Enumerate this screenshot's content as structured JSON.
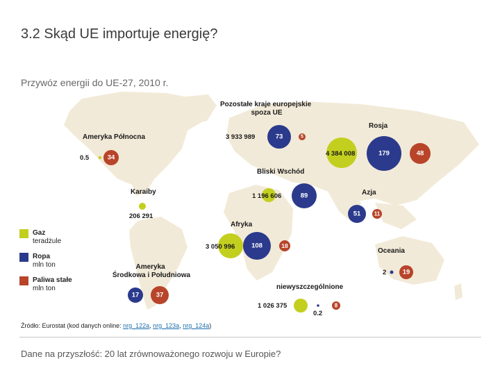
{
  "header": {
    "title": "3.2 Skąd UE importuje energię?",
    "subtitle": "Przywóz energii do UE-27, 2010 r."
  },
  "colors": {
    "gas": "#c3cf1f",
    "oil": "#2b3a8c",
    "solid": "#b8442a",
    "land": "#f2ead8",
    "sea": "#ffffff"
  },
  "legend": {
    "gas": {
      "label": "Gaz",
      "unit": "teradżule"
    },
    "oil": {
      "label": "Ropa",
      "unit": "mln ton"
    },
    "solid": {
      "label": "Paliwa stałe",
      "unit": "mln ton"
    }
  },
  "regions": {
    "north_america": {
      "label": "Ameryka Północna",
      "gas": "0.5",
      "solid": "34"
    },
    "other_europe": {
      "label": "Pozostałe kraje europejskie spoza UE",
      "gas": "3 933 989",
      "oil": "73",
      "solid": "5"
    },
    "russia": {
      "label": "Rosja",
      "gas": "4 384 008",
      "oil": "179",
      "solid": "48"
    },
    "middle_east": {
      "label": "Bliski Wschód",
      "gas": "1 196 606",
      "oil": "89"
    },
    "caribbean": {
      "label": "Karaiby",
      "gas": "206 291"
    },
    "asia": {
      "label": "Azja",
      "oil": "51",
      "solid": "11"
    },
    "africa": {
      "label": "Afryka",
      "gas": "3 050 996",
      "oil": "108",
      "solid": "18"
    },
    "oceania": {
      "label": "Oceania",
      "oil": "2",
      "solid": "19"
    },
    "latin_america": {
      "label": "Ameryka Środkowa i Południowa",
      "oil": "17",
      "solid": "37"
    },
    "unspecified": {
      "label": "niewyszczególnione",
      "gas": "1 026 375",
      "oil": "0.2",
      "solid": "8"
    }
  },
  "source": {
    "prefix": "Źródło: Eurostat (kod danych online: ",
    "link1": "nrg_122a",
    "sep1": ", ",
    "link2": "nrg_123a",
    "sep2": ", ",
    "link3": "nrg_124a",
    "suffix": ")"
  },
  "footer": "Dane na przyszłość: 20 lat zrównoważonego rozwoju w Europie?"
}
